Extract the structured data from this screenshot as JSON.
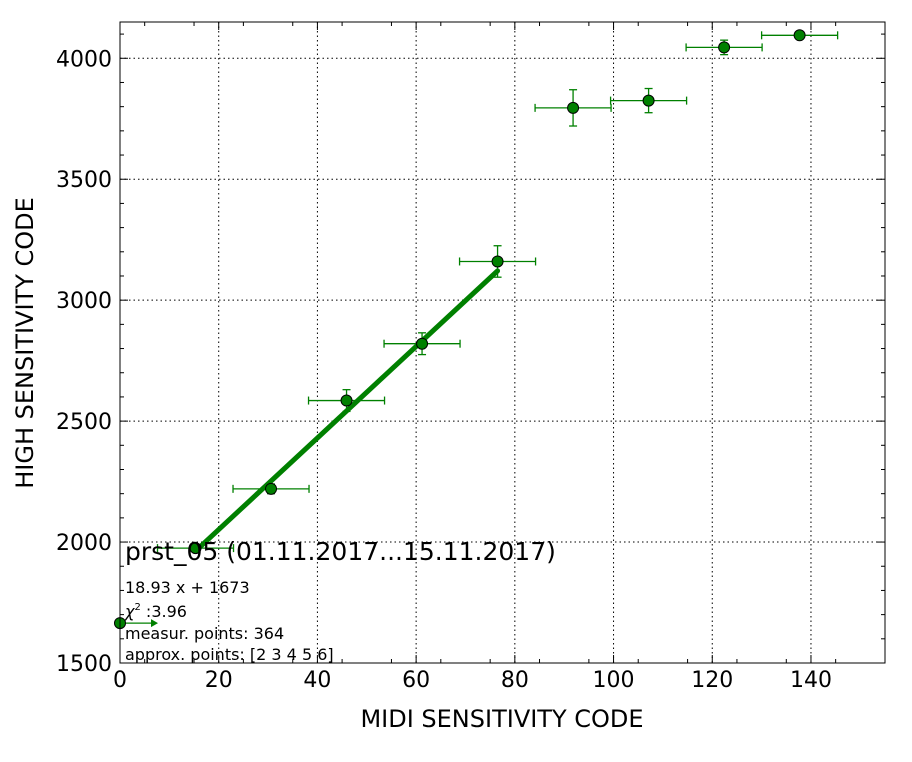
{
  "chart_data": {
    "type": "scatter",
    "xlabel": "MIDI SENSITIVITY CODE",
    "ylabel": "HIGH SENSITIVITY CODE",
    "xlim": [
      0,
      155
    ],
    "ylim": [
      1500,
      4150
    ],
    "x_ticks": [
      0,
      20,
      40,
      60,
      80,
      100,
      120,
      140
    ],
    "y_ticks": [
      1500,
      2000,
      2500,
      3000,
      3500,
      4000
    ],
    "x_tick_labels": [
      "0",
      "20",
      "40",
      "60",
      "80",
      "100",
      "120",
      "140"
    ],
    "y_tick_labels": [
      "1500",
      "2000",
      "2500",
      "3000",
      "3500",
      "4000"
    ],
    "grid": true,
    "color": "#008000",
    "points": [
      {
        "x": 0,
        "y": 1665,
        "xerr": 0,
        "yerr": 0
      },
      {
        "x": 15.3,
        "y": 1975,
        "xerr": 7.7,
        "yerr": 12
      },
      {
        "x": 30.6,
        "y": 2220,
        "xerr": 7.7,
        "yerr": 20
      },
      {
        "x": 45.9,
        "y": 2585,
        "xerr": 7.7,
        "yerr": 45
      },
      {
        "x": 61.2,
        "y": 2820,
        "xerr": 7.7,
        "yerr": 45
      },
      {
        "x": 76.5,
        "y": 3160,
        "xerr": 7.7,
        "yerr": 65
      },
      {
        "x": 91.8,
        "y": 3795,
        "xerr": 7.7,
        "yerr": 75
      },
      {
        "x": 107.1,
        "y": 3825,
        "xerr": 7.7,
        "yerr": 50
      },
      {
        "x": 122.4,
        "y": 4045,
        "xerr": 7.7,
        "yerr": 30
      },
      {
        "x": 137.7,
        "y": 4095,
        "xerr": 7.7,
        "yerr": 10
      }
    ],
    "fit_line": {
      "x_start": 15.3,
      "x_end": 76.5,
      "slope": 18.93,
      "intercept": 1673
    },
    "first_point_arrow": {
      "x_start": 0,
      "x_end": 7.7,
      "y": 1665
    },
    "annotations": {
      "title": "prst_05 (01.11.2017...15.11.2017)",
      "equation": "18.93 x + 1673",
      "chi_symbol": "χ",
      "chi_exponent": "2",
      "chi_value": " :3.96",
      "measur_points": "measur. points: 364",
      "approx_points": "approx. points: [2 3 4 5 6]"
    }
  }
}
